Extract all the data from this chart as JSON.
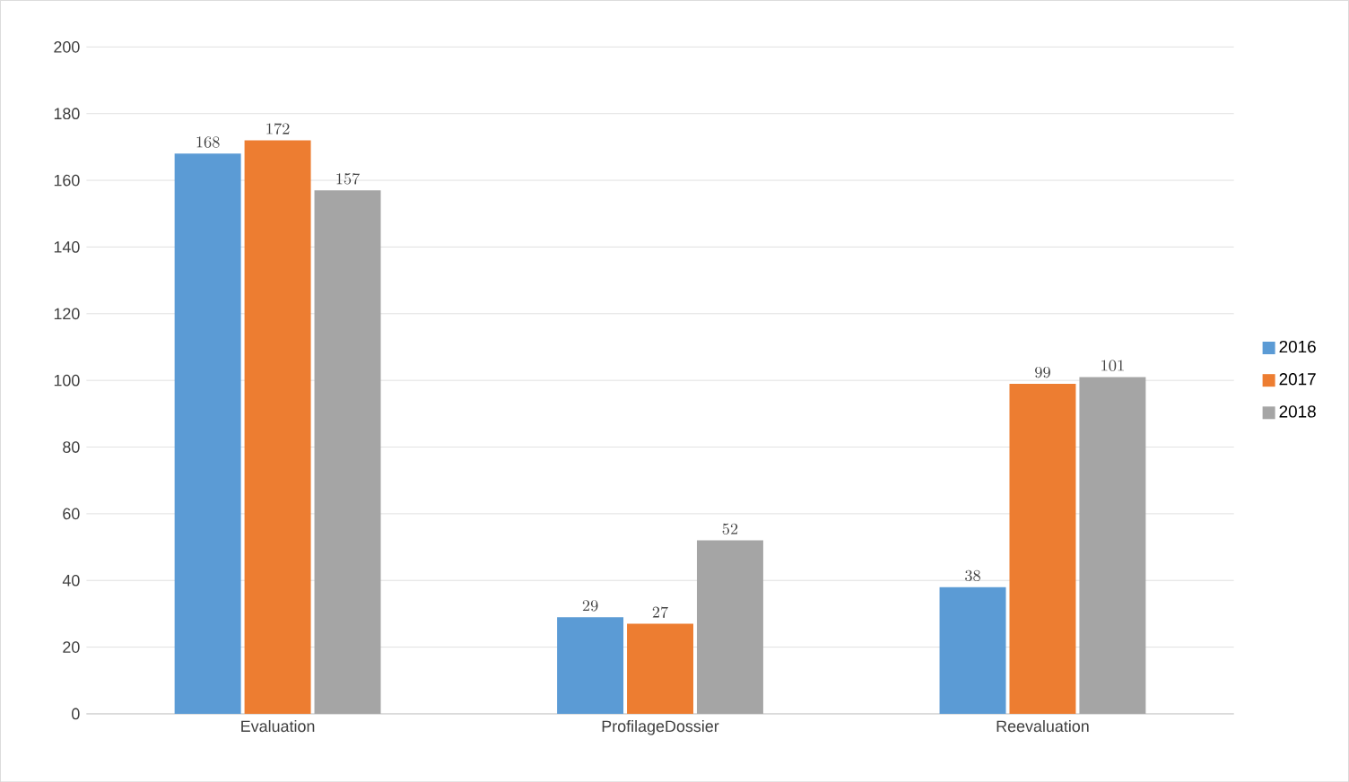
{
  "chart_data": {
    "type": "bar",
    "categories": [
      "Evaluation",
      "ProfilageDossier",
      "Reevaluation"
    ],
    "series": [
      {
        "name": "2016",
        "color": "#5b9bd5",
        "values": [
          168,
          29,
          38
        ]
      },
      {
        "name": "2017",
        "color": "#ed7d31",
        "values": [
          172,
          27,
          99
        ]
      },
      {
        "name": "2018",
        "color": "#a5a5a5",
        "values": [
          157,
          52,
          101
        ]
      }
    ],
    "ylim": [
      0,
      200
    ],
    "yticks": [
      0,
      20,
      40,
      60,
      80,
      100,
      120,
      140,
      160,
      180,
      200
    ],
    "grid": "y",
    "legend": "right",
    "data_labels": true
  }
}
